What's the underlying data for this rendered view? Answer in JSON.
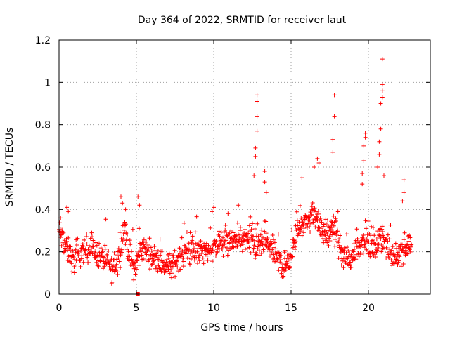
{
  "chart_data": {
    "type": "scatter",
    "title": "Day 364 of 2022, SRMTID for receiver laut",
    "xlabel": "GPS time / hours",
    "ylabel": "SRMTID / TECUs",
    "xlim": [
      0,
      24
    ],
    "ylim": [
      0,
      1.2
    ],
    "x_ticks": [
      0,
      5,
      10,
      15,
      20
    ],
    "x_tick_labels": [
      "0",
      "5",
      "10",
      "15",
      "20"
    ],
    "y_ticks": [
      0,
      0.2,
      0.4,
      0.6,
      0.8,
      1.0,
      1.2
    ],
    "y_tick_labels": [
      "0",
      "0.2",
      "0.4",
      "0.6",
      "0.8",
      "1",
      "1.2"
    ],
    "grid": true,
    "marker": "+",
    "color": "#ff0000",
    "series": [
      {
        "name": "SRMTID",
        "trend": [
          [
            0.0,
            0.3
          ],
          [
            0.3,
            0.24
          ],
          [
            0.6,
            0.2
          ],
          [
            1.0,
            0.15
          ],
          [
            1.5,
            0.2
          ],
          [
            2.0,
            0.22
          ],
          [
            2.5,
            0.19
          ],
          [
            3.0,
            0.16
          ],
          [
            3.5,
            0.12
          ],
          [
            3.9,
            0.17
          ],
          [
            4.2,
            0.32
          ],
          [
            4.5,
            0.2
          ],
          [
            4.9,
            0.12
          ],
          [
            5.3,
            0.22
          ],
          [
            5.8,
            0.2
          ],
          [
            6.3,
            0.16
          ],
          [
            6.9,
            0.14
          ],
          [
            7.3,
            0.13
          ],
          [
            7.8,
            0.18
          ],
          [
            8.4,
            0.2
          ],
          [
            9.0,
            0.2
          ],
          [
            9.5,
            0.2
          ],
          [
            10.0,
            0.22
          ],
          [
            10.5,
            0.24
          ],
          [
            11.0,
            0.25
          ],
          [
            11.5,
            0.25
          ],
          [
            12.0,
            0.26
          ],
          [
            12.4,
            0.24
          ],
          [
            12.8,
            0.22
          ],
          [
            13.2,
            0.24
          ],
          [
            13.7,
            0.22
          ],
          [
            14.2,
            0.16
          ],
          [
            14.6,
            0.12
          ],
          [
            15.0,
            0.18
          ],
          [
            15.5,
            0.32
          ],
          [
            16.0,
            0.34
          ],
          [
            16.5,
            0.38
          ],
          [
            17.0,
            0.3
          ],
          [
            17.5,
            0.28
          ],
          [
            17.9,
            0.3
          ],
          [
            18.3,
            0.18
          ],
          [
            18.8,
            0.17
          ],
          [
            19.3,
            0.22
          ],
          [
            19.7,
            0.26
          ],
          [
            20.0,
            0.22
          ],
          [
            20.5,
            0.22
          ],
          [
            20.9,
            0.28
          ],
          [
            21.3,
            0.2
          ],
          [
            21.8,
            0.18
          ],
          [
            22.3,
            0.22
          ],
          [
            22.8,
            0.25
          ]
        ],
        "outliers": [
          [
            0.1,
            0.36
          ],
          [
            0.5,
            0.41
          ],
          [
            0.6,
            0.39
          ],
          [
            3.4,
            0.05
          ],
          [
            4.0,
            0.46
          ],
          [
            4.1,
            0.43
          ],
          [
            4.3,
            0.4
          ],
          [
            5.1,
            0.46
          ],
          [
            5.2,
            0.42
          ],
          [
            9.9,
            0.39
          ],
          [
            10.0,
            0.41
          ],
          [
            11.6,
            0.42
          ],
          [
            12.6,
            0.56
          ],
          [
            12.7,
            0.65
          ],
          [
            12.7,
            0.69
          ],
          [
            12.8,
            0.77
          ],
          [
            12.8,
            0.84
          ],
          [
            12.8,
            0.91
          ],
          [
            12.8,
            0.94
          ],
          [
            13.3,
            0.58
          ],
          [
            13.3,
            0.53
          ],
          [
            13.4,
            0.48
          ],
          [
            15.7,
            0.55
          ],
          [
            16.5,
            0.6
          ],
          [
            16.7,
            0.64
          ],
          [
            16.8,
            0.62
          ],
          [
            17.7,
            0.67
          ],
          [
            17.7,
            0.73
          ],
          [
            17.8,
            0.84
          ],
          [
            17.8,
            0.94
          ],
          [
            19.6,
            0.52
          ],
          [
            19.6,
            0.57
          ],
          [
            19.7,
            0.63
          ],
          [
            19.7,
            0.7
          ],
          [
            19.8,
            0.74
          ],
          [
            19.8,
            0.76
          ],
          [
            20.6,
            0.6
          ],
          [
            20.7,
            0.66
          ],
          [
            20.7,
            0.72
          ],
          [
            20.8,
            0.78
          ],
          [
            20.8,
            0.9
          ],
          [
            20.9,
            0.93
          ],
          [
            20.9,
            0.96
          ],
          [
            20.9,
            0.99
          ],
          [
            20.9,
            1.11
          ],
          [
            21.0,
            0.56
          ],
          [
            22.2,
            0.44
          ],
          [
            22.3,
            0.48
          ],
          [
            22.3,
            0.54
          ]
        ],
        "sample_count": 1100,
        "spread": 0.055
      }
    ],
    "square_markers": [
      [
        5.1,
        0.0
      ]
    ]
  }
}
